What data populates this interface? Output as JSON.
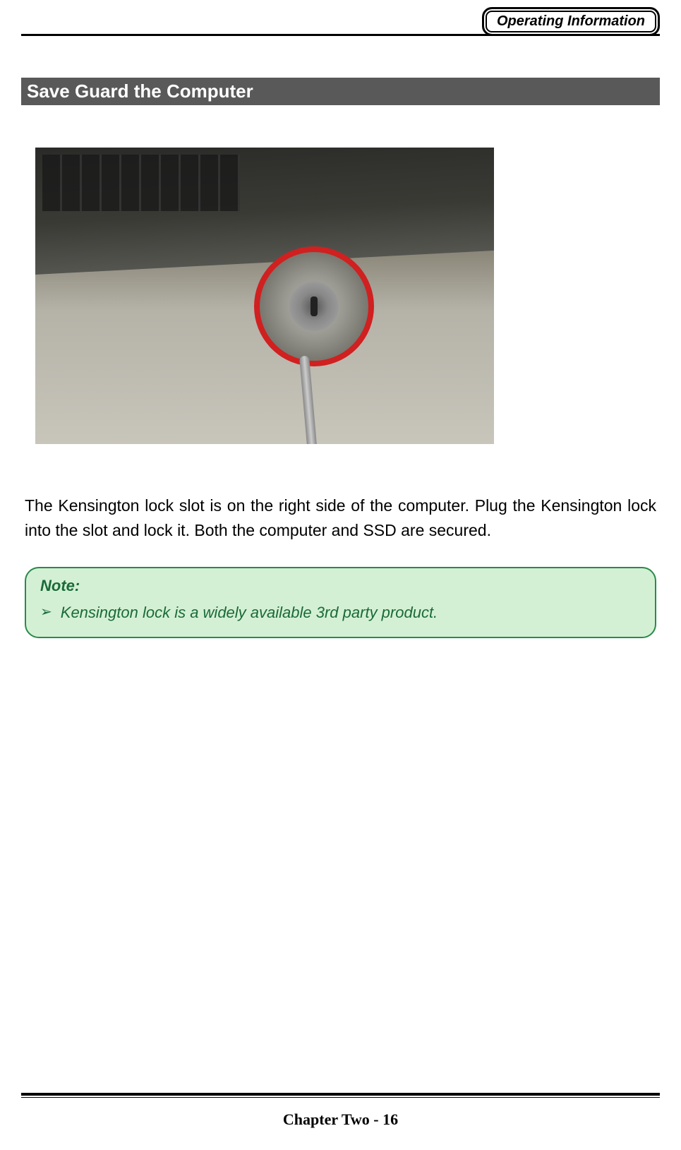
{
  "header": {
    "badge_text": "Operating Information"
  },
  "section": {
    "heading": " Save Guard the Computer                                                           "
  },
  "body": {
    "paragraph": "The Kensington lock slot is on the right side of the computer. Plug the Kensington lock into the slot and lock it. Both the computer and SSD are secured."
  },
  "note": {
    "title": "Note:",
    "bullet_glyph": "➢",
    "items": [
      "Kensington lock is a widely available 3rd party product."
    ]
  },
  "footer": {
    "text": "Chapter Two - 16"
  },
  "colors": {
    "section_bg": "#595959",
    "section_text": "#ffffff",
    "note_border": "#2a8a4a",
    "note_bg": "#d4f0d4",
    "note_text": "#1a6a3a",
    "highlight_circle": "#d02020",
    "body_text": "#000000"
  },
  "image": {
    "description": "Photograph of a laptop side view with a Kensington lock cylinder inserted into the security slot, highlighted by a red circle. A braided security cable extends downward from the lock.",
    "highlight_shape": "circle",
    "highlight_color": "#d02020"
  }
}
